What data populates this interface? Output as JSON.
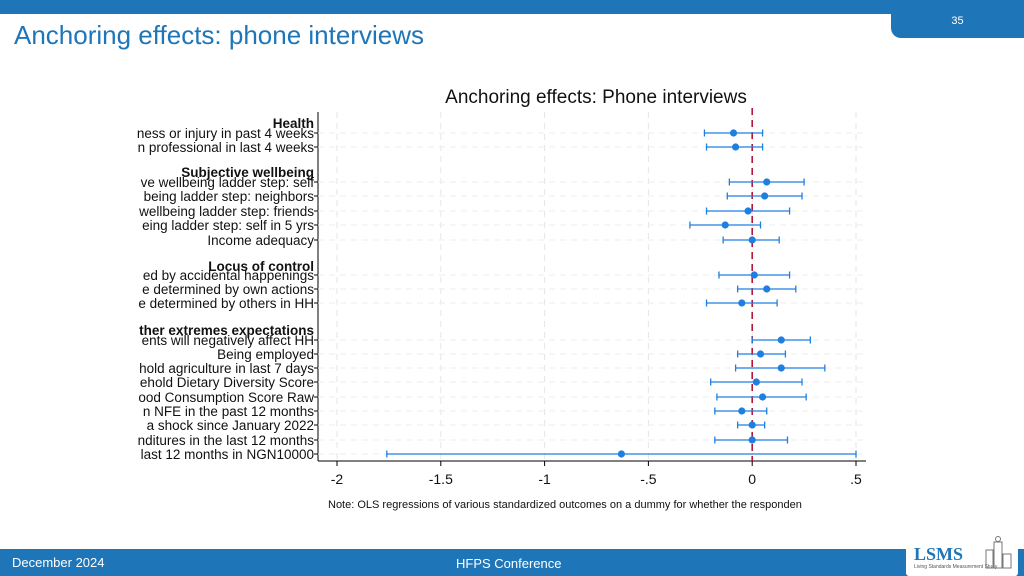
{
  "slide": {
    "title": "Anchoring effects: phone interviews",
    "page_number": "35",
    "footer_left": "December 2024",
    "footer_center": "HFPS Conference",
    "logo_text": "LSMS",
    "logo_subtitle": "Living Standards Measurement Study"
  },
  "colors": {
    "accent": "#1e76b8",
    "marker": "#1f7fe0",
    "zero_line": "#b2183c"
  },
  "chart_data": {
    "type": "coefficient-plot",
    "title": "Anchoring effects: Phone interviews",
    "note": "Note: OLS regressions of various standardized outcomes on a dummy for whether the responden",
    "xlim": [
      -2,
      0.5
    ],
    "xticks": [
      -2,
      -1.5,
      -1,
      -0.5,
      0,
      0.5
    ],
    "xtick_labels": [
      "-2",
      "-1.5",
      "-1",
      "-.5",
      "0",
      ".5"
    ],
    "zero_line": 0,
    "groups": [
      {
        "label": "Health",
        "rows": [
          {
            "label": "ness or injury in past 4 weeks",
            "estimate": -0.09,
            "lo": -0.23,
            "hi": 0.05
          },
          {
            "label": "n professional in last 4 weeks",
            "estimate": -0.08,
            "lo": -0.22,
            "hi": 0.05
          }
        ]
      },
      {
        "label": "Subjective wellbeing",
        "rows": [
          {
            "label": "ve wellbeing ladder step: self",
            "estimate": 0.07,
            "lo": -0.11,
            "hi": 0.25
          },
          {
            "label": "being ladder step: neighbors",
            "estimate": 0.06,
            "lo": -0.12,
            "hi": 0.24
          },
          {
            "label": "wellbeing ladder step: friends",
            "estimate": -0.02,
            "lo": -0.22,
            "hi": 0.18
          },
          {
            "label": "eing ladder step: self in 5 yrs",
            "estimate": -0.13,
            "lo": -0.3,
            "hi": 0.04
          },
          {
            "label": "Income adequacy",
            "estimate": 0.0,
            "lo": -0.14,
            "hi": 0.13
          }
        ]
      },
      {
        "label": "Locus of control",
        "rows": [
          {
            "label": "ed by accidental happenings",
            "estimate": 0.01,
            "lo": -0.16,
            "hi": 0.18
          },
          {
            "label": "e determined by own actions",
            "estimate": 0.07,
            "lo": -0.07,
            "hi": 0.21
          },
          {
            "label": "e determined by others in HH",
            "estimate": -0.05,
            "lo": -0.22,
            "hi": 0.12
          }
        ]
      },
      {
        "label": "ther extremes expectations",
        "rows": [
          {
            "label": "ents will negatively affect HH",
            "estimate": 0.14,
            "lo": 0.0,
            "hi": 0.28
          },
          {
            "label": "Being employed",
            "estimate": 0.04,
            "lo": -0.07,
            "hi": 0.16
          },
          {
            "label": "hold agriculture in last 7 days",
            "estimate": 0.14,
            "lo": -0.08,
            "hi": 0.35
          },
          {
            "label": "ehold Dietary Diversity Score",
            "estimate": 0.02,
            "lo": -0.2,
            "hi": 0.24
          },
          {
            "label": "ood Consumption Score Raw",
            "estimate": 0.05,
            "lo": -0.17,
            "hi": 0.26
          },
          {
            "label": "n NFE in the past 12 months",
            "estimate": -0.05,
            "lo": -0.18,
            "hi": 0.07
          },
          {
            "label": "a shock since January 2022",
            "estimate": 0.0,
            "lo": -0.07,
            "hi": 0.06
          },
          {
            "label": "nditures in the last 12 months",
            "estimate": 0.0,
            "lo": -0.18,
            "hi": 0.17
          },
          {
            "label": "last 12 months in NGN10000",
            "estimate": -0.63,
            "lo": -1.76,
            "hi": 0.5
          }
        ]
      }
    ]
  }
}
